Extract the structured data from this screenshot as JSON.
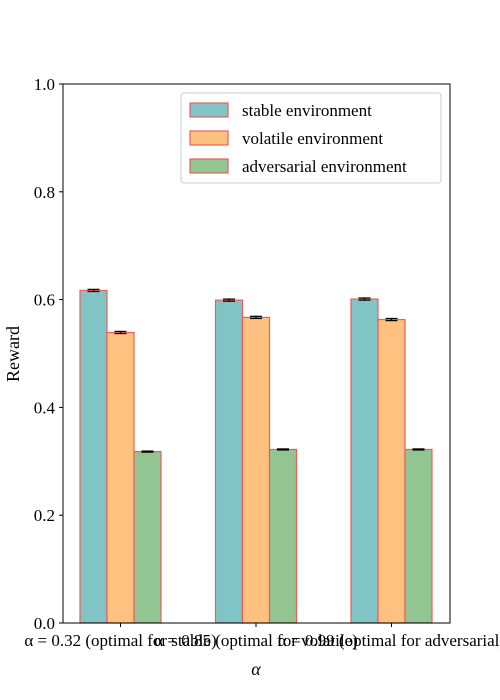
{
  "chart_data": {
    "type": "bar",
    "title": "",
    "xlabel": "α",
    "ylabel": "Reward",
    "ylim": [
      0,
      1.0
    ],
    "yticks": [
      "0.0",
      "0.2",
      "0.4",
      "0.6",
      "0.8",
      "1.0"
    ],
    "categories": [
      "α = 0.32 (optimal for stable)",
      "α = 0.85 (optimal for volatile)",
      "α = 0.99 (optimal for adversarial)"
    ],
    "series": [
      {
        "name": "stable environment",
        "values": [
          0.617,
          0.599,
          0.601
        ],
        "errors": [
          0.002,
          0.002,
          0.002
        ],
        "color": "#80c4c6"
      },
      {
        "name": "volatile environment",
        "values": [
          0.539,
          0.567,
          0.563
        ],
        "errors": [
          0.002,
          0.002,
          0.002
        ],
        "color": "#fec17f"
      },
      {
        "name": "adversarial environment",
        "values": [
          0.318,
          0.322,
          0.322
        ],
        "errors": [
          0.001,
          0.001,
          0.001
        ],
        "color": "#92c591"
      }
    ],
    "bar_edge_color": "#e8605c",
    "grid": false,
    "legend_position": "top-right"
  }
}
